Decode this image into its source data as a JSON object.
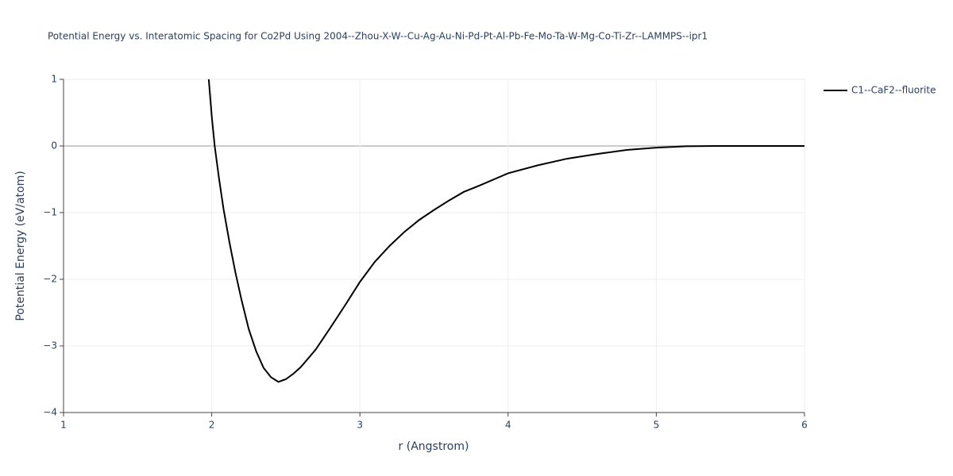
{
  "chart_data": {
    "type": "line",
    "title": "Potential Energy vs. Interatomic Spacing for Co2Pd Using 2004--Zhou-X-W--Cu-Ag-Au-Ni-Pd-Pt-Al-Pb-Fe-Mo-Ta-W-Mg-Co-Ti-Zr--LAMMPS--ipr1",
    "x_label": "r (Angstrom)",
    "y_label": "Potential Energy (eV/atom)",
    "x": [
      1.98,
      2.0,
      2.02,
      2.05,
      2.08,
      2.12,
      2.16,
      2.2,
      2.25,
      2.3,
      2.35,
      2.4,
      2.45,
      2.5,
      2.55,
      2.6,
      2.7,
      2.8,
      2.9,
      3.0,
      3.1,
      3.2,
      3.3,
      3.4,
      3.5,
      3.6,
      3.7,
      3.8,
      4.0,
      4.2,
      4.4,
      4.6,
      4.8,
      5.0,
      5.2,
      5.4,
      6.0
    ],
    "series": [
      {
        "name": "C1--CaF2--fluorite",
        "color": "#000000",
        "values": [
          1.0,
          0.45,
          0.0,
          -0.5,
          -0.95,
          -1.45,
          -1.9,
          -2.3,
          -2.75,
          -3.08,
          -3.33,
          -3.47,
          -3.54,
          -3.5,
          -3.42,
          -3.32,
          -3.06,
          -2.73,
          -2.39,
          -2.04,
          -1.74,
          -1.5,
          -1.29,
          -1.11,
          -0.96,
          -0.82,
          -0.69,
          -0.6,
          -0.41,
          -0.29,
          -0.19,
          -0.12,
          -0.06,
          -0.025,
          -0.005,
          0.0,
          0.0
        ]
      }
    ],
    "xlim": [
      1,
      6
    ],
    "xticks": [
      1,
      2,
      3,
      4,
      5,
      6
    ],
    "ylim": [
      -4,
      1
    ],
    "yticks": [
      {
        "value": -4,
        "label": "−4"
      },
      {
        "value": -3,
        "label": "−3"
      },
      {
        "value": -2,
        "label": "−2"
      },
      {
        "value": -1,
        "label": "−1"
      },
      0,
      1
    ],
    "grid": true,
    "legend": "right"
  }
}
